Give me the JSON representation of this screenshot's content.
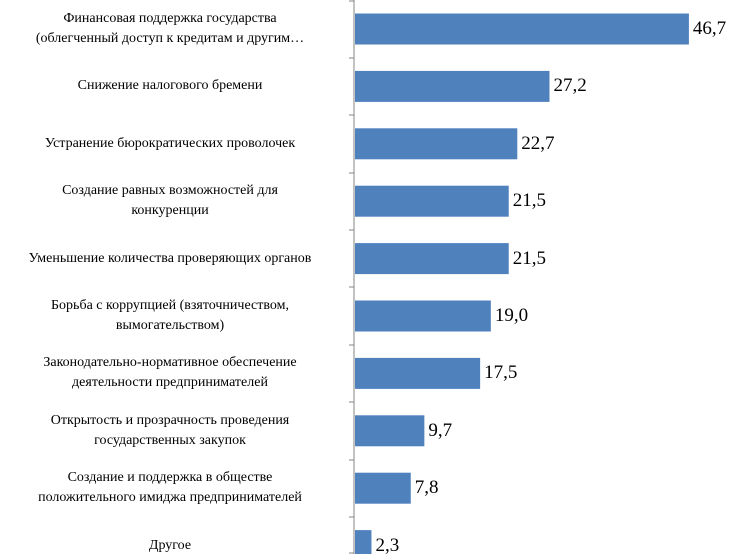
{
  "chart_data": {
    "type": "bar",
    "orientation": "horizontal",
    "categories": [
      [
        "Финансовая поддержка государства",
        "(облегченный доступ к кредитам и другим…"
      ],
      [
        "Снижение налогового бремени"
      ],
      [
        "Устранение бюрократических проволочек"
      ],
      [
        "Создание равных возможностей для",
        "конкуренции"
      ],
      [
        "Уменьшение количества проверяющих органов"
      ],
      [
        "Борьба с коррупцией (взяточничеством,",
        "вымогательством)"
      ],
      [
        "Законодательно-нормативное обеспечение",
        "деятельности предпринимателей"
      ],
      [
        "Открытость и прозрачность проведения",
        "государственных закупок"
      ],
      [
        "Создание и поддержка в обществе",
        "положительного имиджа предпринимателей"
      ],
      [
        "Другое"
      ]
    ],
    "values": [
      46.7,
      27.2,
      22.7,
      21.5,
      21.5,
      19.0,
      17.5,
      9.7,
      7.8,
      2.3
    ],
    "value_labels": [
      "46,7",
      "27,2",
      "22,7",
      "21,5",
      "21,5",
      "19,0",
      "17,5",
      "9,7",
      "7,8",
      "2,3"
    ],
    "xlim": [
      0,
      47
    ],
    "bar_color": "#4f81bd",
    "axis_color": "#868686",
    "grid": false,
    "legend": "none"
  }
}
